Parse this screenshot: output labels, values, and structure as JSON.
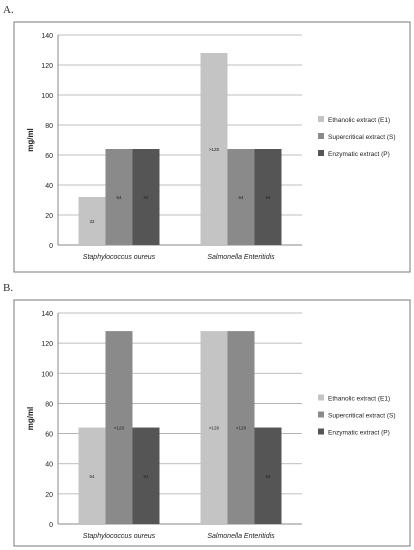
{
  "panels": [
    {
      "label": "A."
    },
    {
      "label": "B."
    }
  ],
  "colors": {
    "ethanolic": "#c4c4c4",
    "supercritical": "#8a8a8a",
    "enzymatic": "#555555",
    "grid": "#aaaaaa",
    "frame": "#7a7a7a"
  },
  "chart_data": [
    {
      "type": "bar",
      "panel": "A.",
      "ylabel": "mg/ml",
      "ylim": [
        0,
        140
      ],
      "yticks": [
        "0",
        "20",
        "40",
        "60",
        "80",
        "100",
        "120",
        "140"
      ],
      "grid": true,
      "legend_position": "right",
      "categories": [
        "Staphylococcus oureus",
        "Salmonella Enteritidis"
      ],
      "series": [
        {
          "name": "Ethanolic extract (E1)",
          "values": [
            32,
            128
          ],
          "data_labels": [
            "32",
            ">128"
          ]
        },
        {
          "name": "Supercritical extract (S)",
          "values": [
            64,
            64
          ],
          "data_labels": [
            "64",
            "64"
          ]
        },
        {
          "name": "Enzymatic extract (P)",
          "values": [
            64,
            64
          ],
          "data_labels": [
            "64",
            "64"
          ]
        }
      ]
    },
    {
      "type": "bar",
      "panel": "B.",
      "ylabel": "mg/ml",
      "ylim": [
        0,
        140
      ],
      "yticks": [
        "0",
        "20",
        "40",
        "60",
        "80",
        "100",
        "120",
        "140"
      ],
      "grid": true,
      "legend_position": "right",
      "categories": [
        "Staphylococcus oureus",
        "Salmonella Enteritidis"
      ],
      "series": [
        {
          "name": "Ethanolic extract (E1)",
          "values": [
            64,
            128
          ],
          "data_labels": [
            "64",
            ">128"
          ]
        },
        {
          "name": "Supercritical extract (S)",
          "values": [
            128,
            128
          ],
          "data_labels": [
            ">128",
            ">128"
          ]
        },
        {
          "name": "Enzymatic extract (P)",
          "values": [
            64,
            64
          ],
          "data_labels": [
            "64",
            "64"
          ]
        }
      ]
    }
  ]
}
